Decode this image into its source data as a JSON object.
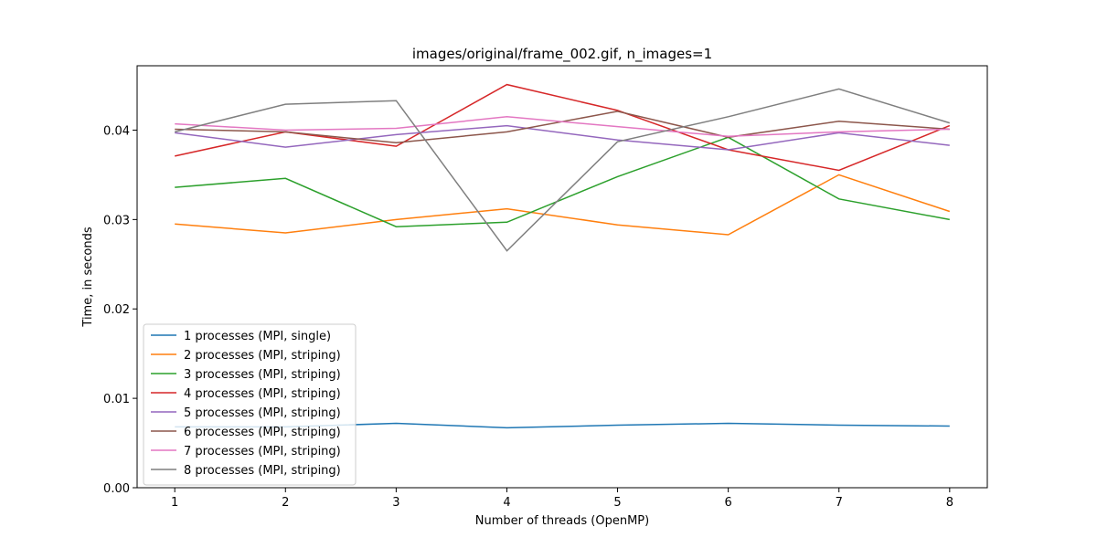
{
  "chart_data": {
    "type": "line",
    "title": "images/original/frame_002.gif, n_images=1",
    "xlabel": "Number of threads (OpenMP)",
    "ylabel": "Time, in seconds",
    "x": [
      1,
      2,
      3,
      4,
      5,
      6,
      7,
      8
    ],
    "xlim": [
      0.66,
      8.34
    ],
    "ylim": [
      0.0,
      0.0472
    ],
    "yticks": [
      "0.00",
      "0.01",
      "0.02",
      "0.03",
      "0.04"
    ],
    "ytick_values": [
      0.0,
      0.01,
      0.02,
      0.03,
      0.04
    ],
    "grid": false,
    "legend_position": "lower-left",
    "series": [
      {
        "name": "1 processes (MPI, single)",
        "color": "#1f77b4",
        "values": [
          0.0068,
          0.0068,
          0.0072,
          0.0067,
          0.007,
          0.0072,
          0.007,
          0.0069
        ]
      },
      {
        "name": "2 processes (MPI, striping)",
        "color": "#ff7f0e",
        "values": [
          0.0295,
          0.0285,
          0.03,
          0.0312,
          0.0294,
          0.0283,
          0.035,
          0.0309
        ]
      },
      {
        "name": "3 processes (MPI, striping)",
        "color": "#2ca02c",
        "values": [
          0.0336,
          0.0346,
          0.0292,
          0.0297,
          0.0348,
          0.0392,
          0.0323,
          0.03
        ]
      },
      {
        "name": "4 processes (MPI, striping)",
        "color": "#d62728",
        "values": [
          0.0371,
          0.0398,
          0.0382,
          0.0451,
          0.0422,
          0.0378,
          0.0355,
          0.0405
        ]
      },
      {
        "name": "5 processes (MPI, striping)",
        "color": "#9467bd",
        "values": [
          0.0397,
          0.0381,
          0.0395,
          0.0405,
          0.0389,
          0.0378,
          0.0397,
          0.0383
        ]
      },
      {
        "name": "6 processes (MPI, striping)",
        "color": "#8c564b",
        "values": [
          0.0401,
          0.0398,
          0.0386,
          0.0398,
          0.0421,
          0.0392,
          0.041,
          0.0401
        ]
      },
      {
        "name": "7 processes (MPI, striping)",
        "color": "#e377c2",
        "values": [
          0.0407,
          0.04,
          0.0402,
          0.0415,
          0.0404,
          0.0393,
          0.0398,
          0.0401
        ]
      },
      {
        "name": "8 processes (MPI, striping)",
        "color": "#7f7f7f",
        "values": [
          0.0398,
          0.0429,
          0.0433,
          0.0265,
          0.0387,
          0.0415,
          0.0446,
          0.0408
        ]
      }
    ]
  }
}
